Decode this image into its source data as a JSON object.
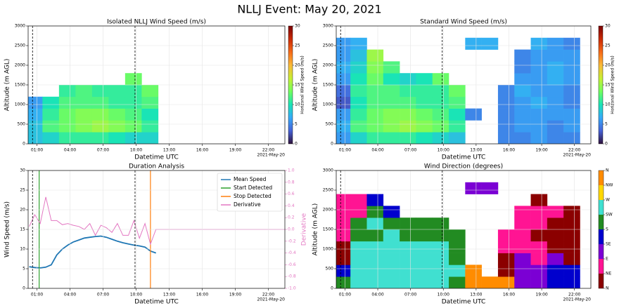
{
  "title": "NLLJ Event: May 20, 2021",
  "chart_data": [
    {
      "type": "heatmap",
      "title": "Isolated NLLJ Wind Speed (m/s)",
      "x_label": "Datetime UTC",
      "y_label": "Altitude (m AGL)",
      "date_label": "2021-May-20",
      "colorbar_label": "Horizonal Wind Speed (m/s)",
      "xlim": [
        0.2,
        23.5
      ],
      "xticks": [
        {
          "value": 1,
          "label": "01:00"
        },
        {
          "value": 4,
          "label": "04:00"
        },
        {
          "value": 7,
          "label": "07:00"
        },
        {
          "value": 10,
          "label": "10:00"
        },
        {
          "value": 13,
          "label": "13:00"
        },
        {
          "value": 16,
          "label": "16:00"
        },
        {
          "value": 19,
          "label": "19:00"
        },
        {
          "value": 22,
          "label": "22:00"
        }
      ],
      "ylim": [
        0,
        3000
      ],
      "yticks": [
        0,
        500,
        1000,
        1500,
        2000,
        2500,
        3000
      ],
      "grid": true,
      "event_lines": [
        0.6,
        9.9
      ],
      "x_edges": [
        0,
        1.5,
        3,
        4.5,
        6,
        7.5,
        9,
        10.5,
        12,
        13.5,
        15,
        16.5,
        18,
        19.5,
        21,
        22.5,
        24
      ],
      "y_edges": [
        0,
        300,
        600,
        900,
        1200,
        1500,
        1800,
        2100,
        2400,
        2700,
        3000
      ],
      "zlim": [
        0,
        30
      ],
      "zticks": [
        0,
        5,
        10,
        15,
        20,
        25,
        30
      ],
      "colorscale": [
        "#30123b",
        "#4662d7",
        "#36aaf9",
        "#1ae4b6",
        "#72fe5e",
        "#c8ef34",
        "#faba39",
        "#f66b19",
        "#ca2a04",
        "#7a0403"
      ],
      "z": [
        [
          8,
          9,
          11,
          11,
          11,
          10,
          9,
          9,
          null,
          null,
          null,
          null,
          null,
          null,
          null,
          null
        ],
        [
          8,
          12,
          13,
          14,
          15,
          14,
          13,
          11,
          null,
          null,
          null,
          null,
          null,
          null,
          null,
          null
        ],
        [
          7,
          11,
          13,
          14,
          14,
          13,
          12,
          10,
          null,
          null,
          null,
          null,
          null,
          null,
          null,
          null
        ],
        [
          6,
          10,
          12,
          12,
          12,
          11,
          11,
          12,
          null,
          null,
          null,
          null,
          null,
          null,
          null,
          null
        ],
        [
          null,
          null,
          11,
          12,
          11,
          11,
          11,
          13,
          null,
          null,
          null,
          null,
          null,
          null,
          null,
          null
        ],
        [
          null,
          null,
          null,
          null,
          null,
          null,
          13,
          null,
          null,
          null,
          null,
          null,
          null,
          null,
          null,
          null
        ],
        [
          null,
          null,
          null,
          null,
          null,
          null,
          null,
          null,
          null,
          null,
          null,
          null,
          null,
          null,
          null,
          null
        ],
        [
          null,
          null,
          null,
          null,
          null,
          null,
          null,
          null,
          null,
          null,
          null,
          null,
          null,
          null,
          null,
          null
        ],
        [
          null,
          null,
          null,
          null,
          null,
          null,
          null,
          null,
          null,
          null,
          null,
          null,
          null,
          null,
          null,
          null
        ],
        [
          null,
          null,
          null,
          null,
          null,
          null,
          null,
          null,
          null,
          null,
          null,
          null,
          null,
          null,
          null,
          null
        ]
      ]
    },
    {
      "type": "heatmap",
      "title": "Standard Wind Speed (m/s)",
      "x_label": "Datetime UTC",
      "y_label": "Altitude (m AGL)",
      "date_label": "2021-May-20",
      "colorbar_label": "Horizonal Wind Speed (m/s)",
      "xlim": [
        0.2,
        23.5
      ],
      "xticks": [
        {
          "value": 1,
          "label": "01:00"
        },
        {
          "value": 4,
          "label": "04:00"
        },
        {
          "value": 7,
          "label": "07:00"
        },
        {
          "value": 10,
          "label": "10:00"
        },
        {
          "value": 13,
          "label": "13:00"
        },
        {
          "value": 16,
          "label": "16:00"
        },
        {
          "value": 19,
          "label": "19:00"
        },
        {
          "value": 22,
          "label": "22:00"
        }
      ],
      "ylim": [
        0,
        3000
      ],
      "yticks": [
        0,
        500,
        1000,
        1500,
        2000,
        2500,
        3000
      ],
      "grid": true,
      "event_lines": [
        0.6,
        9.9
      ],
      "x_edges": [
        0,
        1.5,
        3,
        4.5,
        6,
        7.5,
        9,
        10.5,
        12,
        13.5,
        15,
        16.5,
        18,
        19.5,
        21,
        22.5,
        24
      ],
      "y_edges": [
        0,
        300,
        600,
        900,
        1200,
        1500,
        1800,
        2100,
        2400,
        2700,
        3000
      ],
      "zlim": [
        0,
        30
      ],
      "zticks": [
        0,
        5,
        10,
        15,
        20,
        25,
        30
      ],
      "colorscale": [
        "#30123b",
        "#4662d7",
        "#36aaf9",
        "#1ae4b6",
        "#72fe5e",
        "#c8ef34",
        "#faba39",
        "#f66b19",
        "#ca2a04",
        "#7a0403"
      ],
      "z": [
        [
          6,
          9,
          11,
          11,
          11,
          10,
          9,
          8,
          null,
          null,
          5,
          5,
          6,
          5,
          5,
          null
        ],
        [
          7,
          12,
          13,
          14,
          15,
          14,
          13,
          11,
          null,
          null,
          5,
          6,
          6,
          5,
          6,
          null
        ],
        [
          6,
          11,
          13,
          14,
          14,
          13,
          12,
          10,
          5,
          null,
          5,
          6,
          6,
          6,
          6,
          null
        ],
        [
          3,
          10,
          12,
          12,
          12,
          11,
          11,
          12,
          null,
          null,
          5,
          6,
          7,
          6,
          5,
          null
        ],
        [
          4,
          11,
          12,
          12,
          11,
          11,
          11,
          13,
          null,
          null,
          5,
          7,
          6,
          6,
          5,
          null
        ],
        [
          6,
          10,
          13,
          10,
          9,
          10,
          13,
          null,
          null,
          null,
          null,
          6,
          6,
          7,
          6,
          null
        ],
        [
          7,
          9,
          14,
          12,
          null,
          null,
          null,
          null,
          null,
          null,
          null,
          5,
          6,
          7,
          6,
          null
        ],
        [
          6,
          8,
          15,
          null,
          null,
          null,
          null,
          null,
          null,
          null,
          null,
          5,
          6,
          6,
          6,
          null
        ],
        [
          6,
          7,
          null,
          null,
          null,
          null,
          null,
          null,
          7,
          7,
          null,
          null,
          7,
          6,
          5,
          null
        ],
        [
          null,
          null,
          null,
          null,
          null,
          null,
          null,
          null,
          null,
          null,
          null,
          null,
          null,
          null,
          null,
          null
        ]
      ]
    },
    {
      "type": "line",
      "title": "Duration Analysis",
      "x_label": "Datetime UTC",
      "y_label": "Wind Speed (m/s)",
      "y2_label": "Derivative",
      "y2_color": "#e377c2",
      "date_label": "2021-May-20",
      "xlim": [
        0.2,
        23.5
      ],
      "xticks": [
        {
          "value": 1,
          "label": "01:00"
        },
        {
          "value": 4,
          "label": "04:00"
        },
        {
          "value": 7,
          "label": "07:00"
        },
        {
          "value": 10,
          "label": "10:00"
        },
        {
          "value": 13,
          "label": "13:00"
        },
        {
          "value": 16,
          "label": "16:00"
        },
        {
          "value": 19,
          "label": "19:00"
        },
        {
          "value": 22,
          "label": "22:00"
        }
      ],
      "ylim": [
        0,
        30
      ],
      "yticks": [
        0,
        5,
        10,
        15,
        20,
        25,
        30
      ],
      "y2lim": [
        -1,
        1
      ],
      "y2ticks": [
        {
          "value": -1,
          "label": "-1.0"
        },
        {
          "value": -0.8,
          "label": "-0.8"
        },
        {
          "value": -0.6,
          "label": "-0.6"
        },
        {
          "value": -0.4,
          "label": "-0.4"
        },
        {
          "value": -0.2,
          "label": "-0.2"
        },
        {
          "value": 0,
          "label": "0.0"
        },
        {
          "value": 0.2,
          "label": "0.2"
        },
        {
          "value": 0.4,
          "label": "0.4"
        },
        {
          "value": 0.6,
          "label": "0.6"
        },
        {
          "value": 0.8,
          "label": "0.8"
        },
        {
          "value": 1,
          "label": "1.0"
        }
      ],
      "grid": true,
      "legend": "upper right",
      "event_lines": [
        0.6,
        9.9
      ],
      "series": [
        {
          "name": "Mean Speed",
          "color": "#1f77b4",
          "x": [
            0.3,
            0.8,
            1.3,
            1.8,
            2.3,
            2.8,
            3.3,
            3.8,
            4.3,
            4.8,
            5.3,
            5.8,
            6.3,
            6.8,
            7.3,
            7.8,
            8.3,
            8.8,
            9.3,
            9.8,
            10.3,
            10.8,
            11.3,
            11.8
          ],
          "values": [
            5.5,
            5.3,
            5.2,
            5.4,
            6.0,
            8.5,
            10,
            11,
            11.8,
            12.3,
            12.8,
            13,
            13.2,
            13.3,
            13.0,
            12.5,
            12.0,
            11.6,
            11.3,
            11.0,
            10.8,
            10.5,
            9.5,
            9.0
          ]
        },
        {
          "name": "Start Detected",
          "color": "#2ca02c",
          "vline": 1.2
        },
        {
          "name": "Stop Detected",
          "color": "#ff7f0e",
          "vline": 11.3
        },
        {
          "name": "Derivative",
          "color": "#e377c2",
          "axis": "y2",
          "x": [
            0.3,
            0.8,
            1.3,
            1.8,
            2.3,
            2.8,
            3.3,
            3.8,
            4.3,
            4.8,
            5.3,
            5.8,
            6.3,
            6.8,
            7.3,
            7.8,
            8.3,
            8.8,
            9.3,
            9.8,
            10.3,
            10.8,
            11.3,
            11.8,
            12.3,
            23.5
          ],
          "values": [
            0.05,
            0.25,
            0.1,
            0.55,
            0.15,
            0.15,
            0.08,
            0.1,
            0.07,
            0.05,
            0.0,
            0.1,
            -0.1,
            0.07,
            0.03,
            -0.05,
            0.1,
            -0.1,
            -0.1,
            0.15,
            -0.15,
            0.1,
            -0.25,
            0.0,
            0.0,
            0.0
          ]
        }
      ]
    },
    {
      "type": "heatmap",
      "title": "Wind Direction (degrees)",
      "x_label": "Datetime UTC",
      "y_label": "Altitude (m AGL)",
      "date_label": "2021-May-20",
      "xlim": [
        0.2,
        23.5
      ],
      "xticks": [
        {
          "value": 1,
          "label": "01:00"
        },
        {
          "value": 4,
          "label": "04:00"
        },
        {
          "value": 7,
          "label": "07:00"
        },
        {
          "value": 10,
          "label": "10:00"
        },
        {
          "value": 13,
          "label": "13:00"
        },
        {
          "value": 16,
          "label": "16:00"
        },
        {
          "value": 19,
          "label": "19:00"
        },
        {
          "value": 22,
          "label": "22:00"
        }
      ],
      "ylim": [
        0,
        3000
      ],
      "yticks": [
        0,
        500,
        1000,
        1500,
        2000,
        2500,
        3000
      ],
      "grid": true,
      "event_lines": [
        0.6,
        9.9
      ],
      "x_edges": [
        0,
        1.5,
        3,
        4.5,
        6,
        7.5,
        9,
        10.5,
        12,
        13.5,
        15,
        16.5,
        18,
        19.5,
        21,
        22.5,
        24
      ],
      "y_edges": [
        0,
        300,
        600,
        900,
        1200,
        1500,
        1800,
        2100,
        2400,
        2700,
        3000
      ],
      "zlim": [
        0,
        360
      ],
      "zticks": [
        {
          "value": 0,
          "label": "N"
        },
        {
          "value": 45,
          "label": "NE"
        },
        {
          "value": 90,
          "label": "E"
        },
        {
          "value": 135,
          "label": "SE"
        },
        {
          "value": 180,
          "label": "S"
        },
        {
          "value": 225,
          "label": "SW"
        },
        {
          "value": 270,
          "label": "W"
        },
        {
          "value": 315,
          "label": "NW"
        },
        {
          "value": 360,
          "label": "N"
        }
      ],
      "bin_colors": [
        "#8b0000",
        "#ff1493",
        "#7b00d4",
        "#0000cd",
        "#228b22",
        "#40e0d0",
        "#ffd700",
        "#ff8c00"
      ],
      "z": [
        [
          200,
          240,
          240,
          240,
          240,
          240,
          240,
          220,
          330,
          330,
          330,
          100,
          110,
          150,
          160,
          null
        ],
        [
          170,
          240,
          240,
          240,
          240,
          240,
          240,
          240,
          330,
          null,
          20,
          100,
          110,
          160,
          150,
          null
        ],
        [
          20,
          240,
          240,
          240,
          240,
          240,
          240,
          200,
          null,
          null,
          20,
          100,
          70,
          100,
          20,
          null
        ],
        [
          30,
          240,
          240,
          240,
          240,
          240,
          240,
          190,
          null,
          null,
          70,
          70,
          60,
          20,
          20,
          null
        ],
        [
          60,
          190,
          190,
          240,
          200,
          190,
          180,
          200,
          null,
          null,
          80,
          70,
          20,
          20,
          20,
          null
        ],
        [
          70,
          200,
          240,
          190,
          200,
          190,
          180,
          null,
          null,
          null,
          null,
          70,
          70,
          20,
          20,
          null
        ],
        [
          80,
          70,
          190,
          140,
          null,
          null,
          null,
          null,
          null,
          null,
          null,
          80,
          70,
          70,
          20,
          null
        ],
        [
          70,
          70,
          150,
          null,
          null,
          null,
          null,
          null,
          null,
          null,
          null,
          null,
          20,
          null,
          null,
          null
        ],
        [
          null,
          null,
          null,
          null,
          null,
          null,
          null,
          null,
          110,
          110,
          null,
          null,
          null,
          null,
          null,
          null
        ],
        [
          null,
          null,
          null,
          null,
          null,
          null,
          null,
          null,
          null,
          null,
          null,
          null,
          null,
          null,
          null,
          null
        ]
      ]
    }
  ]
}
